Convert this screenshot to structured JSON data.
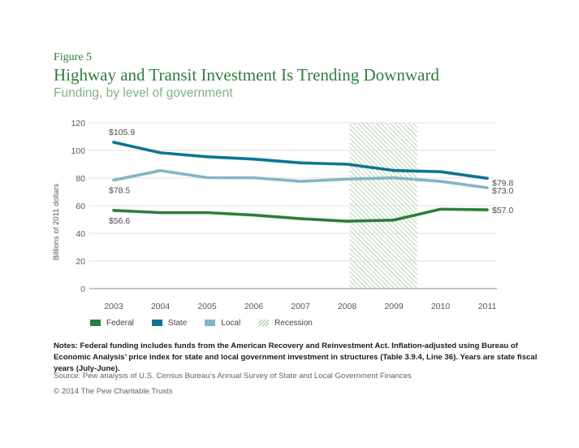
{
  "figure_label": "Figure 5",
  "title": "Highway and Transit Investment Is Trending Downward",
  "subtitle": "Funding, by level of government",
  "colors": {
    "federal": "#2e7d3a",
    "state": "#0e7592",
    "local": "#86b4c7",
    "recession": "#8fbf8c",
    "grid": "#d6d6d6",
    "axis_text": "#5a5a5a"
  },
  "chart_data": {
    "type": "line",
    "x": [
      "2003",
      "2004",
      "2005",
      "2006",
      "2007",
      "2008",
      "2009",
      "2010",
      "2011"
    ],
    "ylabel": "Billions of 2011 dollars",
    "ylim": [
      0,
      120
    ],
    "yticks": [
      0,
      20,
      40,
      60,
      80,
      100,
      120
    ],
    "grid": true,
    "legend_position": "bottom-left",
    "series": [
      {
        "name": "Federal",
        "key": "federal",
        "values": [
          56.6,
          55.0,
          55.0,
          53.2,
          50.6,
          48.8,
          49.6,
          57.5,
          57.0
        ]
      },
      {
        "name": "State",
        "key": "state",
        "values": [
          105.9,
          98.3,
          95.4,
          93.7,
          91.0,
          90.0,
          85.5,
          84.6,
          79.8
        ]
      },
      {
        "name": "Local",
        "key": "local",
        "values": [
          78.5,
          85.4,
          80.3,
          80.2,
          77.6,
          79.2,
          80.2,
          77.6,
          73.0
        ]
      }
    ],
    "recession": {
      "label": "Recession",
      "start": "2008",
      "end": "2009"
    },
    "annotations": [
      {
        "series": "state",
        "index": 0,
        "text": "$105.9"
      },
      {
        "series": "local",
        "index": 0,
        "text": "$78.5"
      },
      {
        "series": "federal",
        "index": 0,
        "text": "$56.6"
      },
      {
        "series": "state",
        "index": 8,
        "text": "$79.8"
      },
      {
        "series": "local",
        "index": 8,
        "text": "$73.0"
      },
      {
        "series": "federal",
        "index": 8,
        "text": "$57.0"
      }
    ]
  },
  "legend": {
    "federal": "Federal",
    "state": "State",
    "local": "Local",
    "recession": "Recession"
  },
  "notes": "Notes: Federal funding includes funds from the American Recovery and Reinvestment Act. Inflation-adjusted using Bureau of Economic Analysis’ price index for state and local government investment in structures (Table 3.9.4, Line 36). Years are state fiscal years (July-June).",
  "source": "Source: Pew analysis of U.S. Census Bureau’s Annual Survey of State and Local Government Finances",
  "copyright": "© 2014 The Pew Charitable Trusts"
}
